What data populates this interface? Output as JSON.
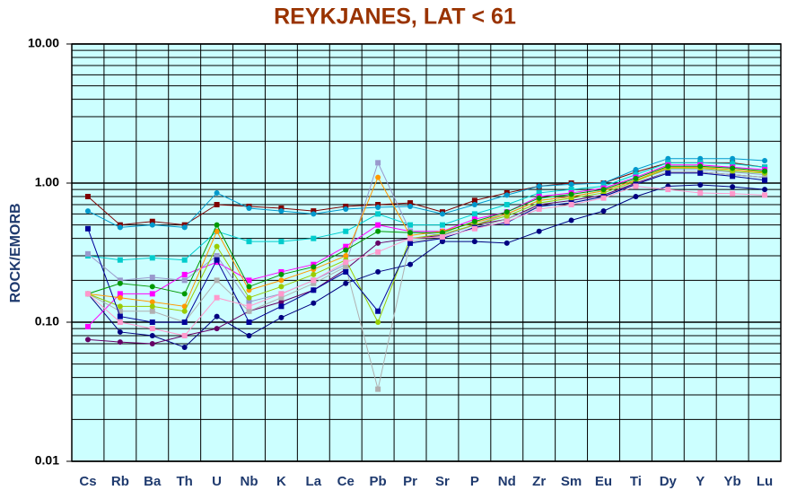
{
  "chart_data": {
    "type": "line",
    "title": "REYKJANES,  LAT < 61",
    "y_label": "ROCK/EMORB",
    "categories": [
      "Cs",
      "Rb",
      "Ba",
      "Th",
      "U",
      "Nb",
      "K",
      "La",
      "Ce",
      "Pb",
      "Pr",
      "Sr",
      "P",
      "Nd",
      "Zr",
      "Sm",
      "Eu",
      "Ti",
      "Dy",
      "Y",
      "Yb",
      "Lu"
    ],
    "log_scale": true,
    "grid": true,
    "minor_grid": true,
    "plot_background": "#ccffff",
    "ylim": [
      0.01,
      10
    ],
    "yticks": [
      {
        "value": 0.01,
        "label": "0.01"
      },
      {
        "value": 0.1,
        "label": "0.10"
      },
      {
        "value": 1,
        "label": "1.00"
      },
      {
        "value": 10,
        "label": "10.00"
      }
    ],
    "series": [
      {
        "color": "#800000",
        "values": [
          0.8,
          0.5,
          0.53,
          0.5,
          0.7,
          0.68,
          0.66,
          0.63,
          0.68,
          0.7,
          0.72,
          0.62,
          0.75,
          0.85,
          0.95,
          1.0,
          1.0,
          1.2,
          1.4,
          1.4,
          1.4,
          1.3
        ]
      },
      {
        "color": "#0099cc",
        "values": [
          0.63,
          0.48,
          0.5,
          0.48,
          0.85,
          0.66,
          0.63,
          0.6,
          0.65,
          0.67,
          0.68,
          0.6,
          0.7,
          0.82,
          0.95,
          0.98,
          1.0,
          1.25,
          1.5,
          1.5,
          1.5,
          1.45
        ]
      },
      {
        "color": "#00cccc",
        "values": [
          0.3,
          0.28,
          0.29,
          0.28,
          0.45,
          0.38,
          0.38,
          0.4,
          0.45,
          0.6,
          0.5,
          0.5,
          0.6,
          0.7,
          0.85,
          0.9,
          0.95,
          1.15,
          1.4,
          1.4,
          1.38,
          1.3
        ]
      },
      {
        "color": "#000080",
        "values": [
          0.16,
          0.085,
          0.08,
          0.066,
          0.11,
          0.08,
          0.108,
          0.137,
          0.19,
          0.23,
          0.26,
          0.38,
          0.38,
          0.37,
          0.45,
          0.54,
          0.63,
          0.8,
          0.95,
          0.97,
          0.94,
          0.9
        ]
      },
      {
        "color": "#ff00ff",
        "values": [
          0.093,
          0.16,
          0.16,
          0.22,
          0.27,
          0.2,
          0.23,
          0.26,
          0.35,
          0.5,
          0.45,
          0.45,
          0.55,
          0.62,
          0.8,
          0.85,
          0.92,
          1.1,
          1.35,
          1.35,
          1.3,
          1.25
        ]
      },
      {
        "color": "#660066",
        "values": [
          0.075,
          0.072,
          0.07,
          0.08,
          0.09,
          0.12,
          0.14,
          0.17,
          0.24,
          0.37,
          0.4,
          0.42,
          0.5,
          0.55,
          0.7,
          0.75,
          0.82,
          1.0,
          1.2,
          1.2,
          1.15,
          1.1
        ]
      },
      {
        "color": "#9999cc",
        "values": [
          0.31,
          0.2,
          0.21,
          0.2,
          0.3,
          0.14,
          0.16,
          0.2,
          0.26,
          1.4,
          0.45,
          0.42,
          0.5,
          0.6,
          0.75,
          0.8,
          0.88,
          1.05,
          1.25,
          1.25,
          1.2,
          1.15
        ]
      },
      {
        "color": "#ff9900",
        "values": [
          0.16,
          0.15,
          0.14,
          0.13,
          0.45,
          0.17,
          0.2,
          0.24,
          0.3,
          1.1,
          0.42,
          0.45,
          0.52,
          0.6,
          0.75,
          0.8,
          0.88,
          1.05,
          1.3,
          1.3,
          1.25,
          1.2
        ]
      },
      {
        "color": "#b0b0b0",
        "values": [
          0.16,
          0.12,
          0.12,
          0.1,
          0.2,
          0.12,
          0.15,
          0.19,
          0.25,
          0.033,
          0.38,
          0.4,
          0.48,
          0.55,
          0.68,
          0.72,
          0.8,
          0.98,
          1.2,
          1.2,
          1.15,
          1.1
        ]
      },
      {
        "color": "#99cc00",
        "values": [
          0.16,
          0.13,
          0.13,
          0.12,
          0.35,
          0.15,
          0.18,
          0.22,
          0.28,
          0.1,
          0.4,
          0.43,
          0.5,
          0.58,
          0.72,
          0.78,
          0.85,
          1.03,
          1.28,
          1.28,
          1.22,
          1.18
        ]
      },
      {
        "color": "#000099",
        "values": [
          0.47,
          0.11,
          0.1,
          0.1,
          0.28,
          0.1,
          0.13,
          0.17,
          0.23,
          0.12,
          0.37,
          0.4,
          0.48,
          0.52,
          0.68,
          0.72,
          0.8,
          0.98,
          1.18,
          1.18,
          1.12,
          1.05
        ]
      },
      {
        "color": "#009900",
        "values": [
          0.16,
          0.19,
          0.18,
          0.16,
          0.5,
          0.18,
          0.22,
          0.25,
          0.33,
          0.45,
          0.44,
          0.44,
          0.53,
          0.62,
          0.78,
          0.83,
          0.9,
          1.08,
          1.32,
          1.32,
          1.28,
          1.22
        ]
      },
      {
        "color": "#ff99cc",
        "values": [
          0.16,
          0.1,
          0.09,
          0.08,
          0.15,
          0.13,
          0.16,
          0.2,
          0.27,
          0.32,
          0.4,
          0.41,
          0.47,
          0.53,
          0.65,
          0.7,
          0.78,
          0.95,
          0.9,
          0.85,
          0.84,
          0.82
        ]
      }
    ]
  }
}
